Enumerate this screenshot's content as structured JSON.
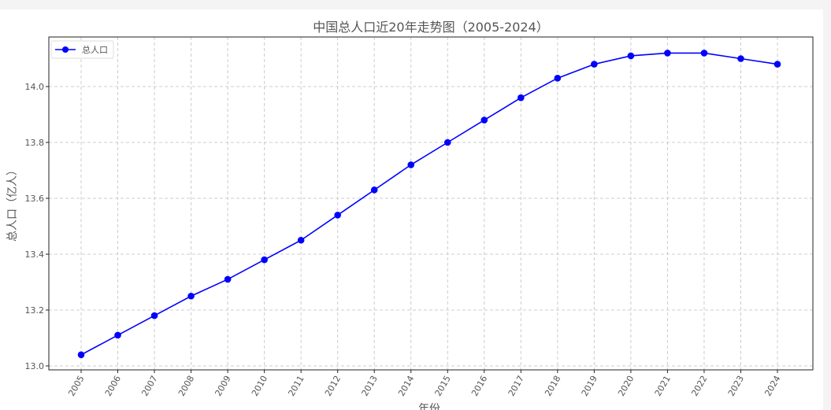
{
  "chart_data": {
    "type": "line",
    "title": "中国总人口近20年走势图（2005-2024）",
    "xlabel": "年份",
    "ylabel": "总人口（亿人）",
    "x": [
      2005,
      2006,
      2007,
      2008,
      2009,
      2010,
      2011,
      2012,
      2013,
      2014,
      2015,
      2016,
      2017,
      2018,
      2019,
      2020,
      2021,
      2022,
      2023,
      2024
    ],
    "x_tick_labels": [
      "2005",
      "2006",
      "2007",
      "2008",
      "2009",
      "2010",
      "2011",
      "2012",
      "2013",
      "2014",
      "2015",
      "2016",
      "2017",
      "2018",
      "2019",
      "2020",
      "2021",
      "2022",
      "2023",
      "2024"
    ],
    "series": [
      {
        "name": "总人口",
        "color": "#0000ff",
        "marker": "circle",
        "values": [
          13.04,
          13.11,
          13.18,
          13.25,
          13.31,
          13.38,
          13.45,
          13.54,
          13.63,
          13.72,
          13.8,
          13.88,
          13.96,
          14.03,
          14.08,
          14.11,
          14.12,
          14.12,
          14.1,
          14.08
        ]
      }
    ],
    "y_ticks": [
      13.0,
      13.2,
      13.4,
      13.6,
      13.8,
      14.0
    ],
    "y_tick_labels": [
      "13.0",
      "13.2",
      "13.4",
      "13.6",
      "13.8",
      "14.0"
    ],
    "ylim": [
      12.98,
      14.17
    ],
    "grid": true,
    "grid_style": "dashed",
    "legend_position": "top-left"
  }
}
